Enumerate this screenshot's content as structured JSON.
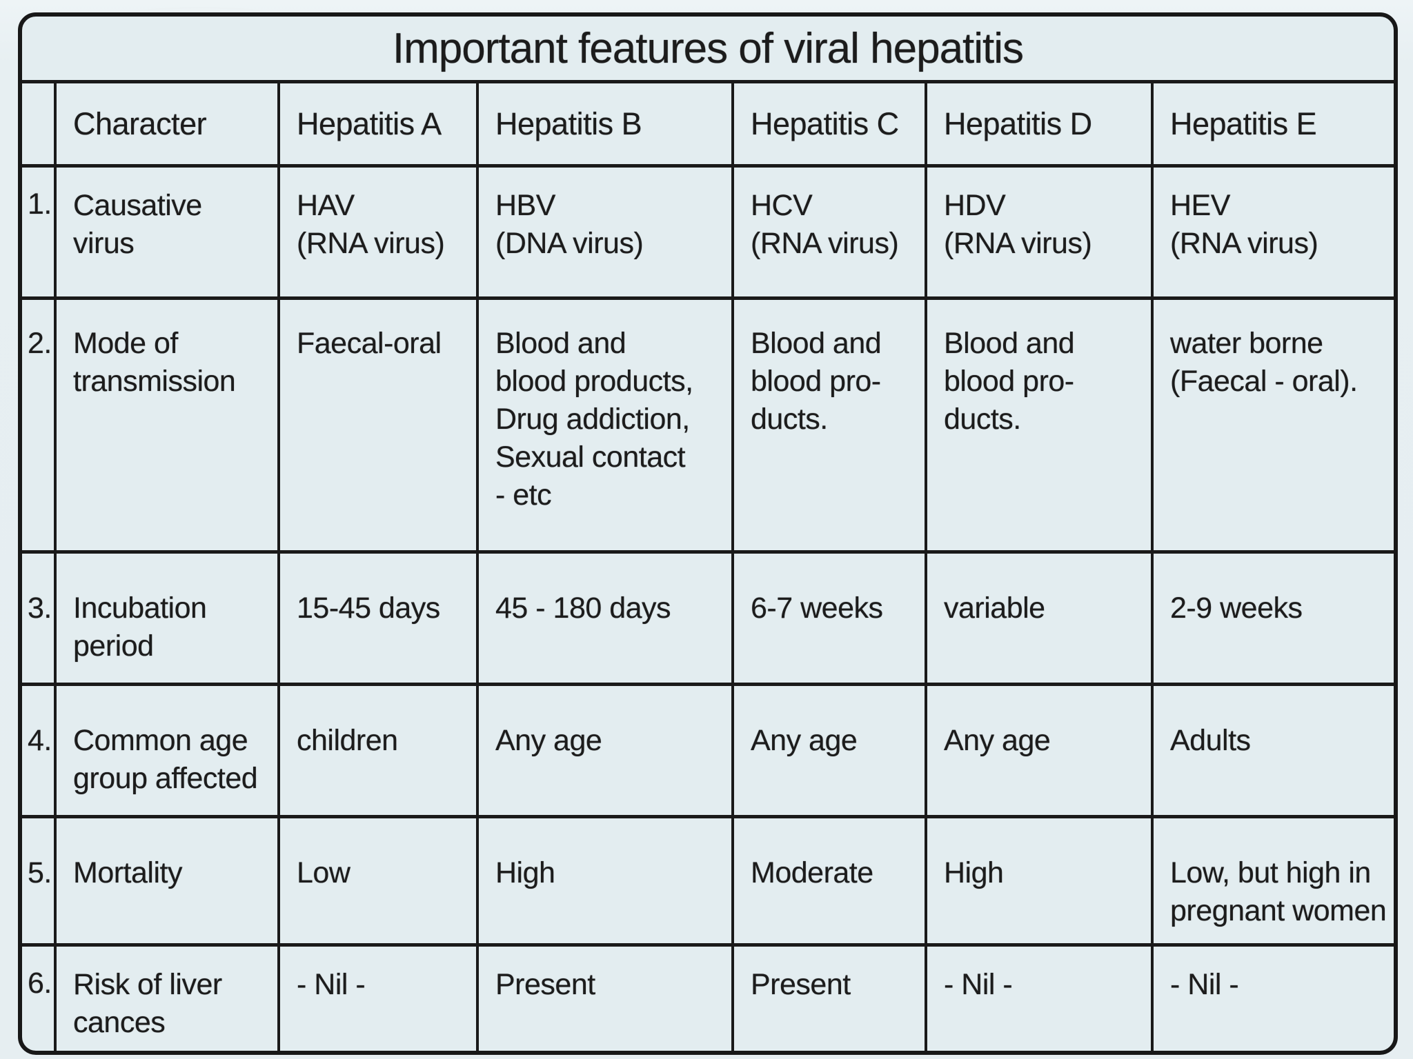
{
  "page": {
    "background": "#e6eef1",
    "ink": "#1c1c1c"
  },
  "table": {
    "title": "Important features of viral hepatitis",
    "headers": {
      "index": "",
      "character": "Character",
      "cols": [
        "Hepatitis A",
        "Hepatitis B",
        "Hepatitis C",
        "Hepatitis D",
        "Hepatitis E"
      ]
    },
    "rows": [
      {
        "num": "1.",
        "character": "Causative\nvirus",
        "cells": [
          "HAV\n(RNA virus)",
          "HBV\n(DNA virus)",
          "HCV\n(RNA virus)",
          "HDV\n(RNA virus)",
          "HEV\n(RNA virus)"
        ]
      },
      {
        "num": "2.",
        "character": "Mode of\ntransmission",
        "cells": [
          "Faecal-oral",
          "Blood and\nblood products,\nDrug addiction,\nSexual contact\n- etc",
          "Blood and\nblood pro-\nducts.",
          "Blood and\nblood pro-\nducts.",
          "water borne\n(Faecal - oral)."
        ]
      },
      {
        "num": "3.",
        "character": "Incubation\nperiod",
        "cells": [
          "15-45 days",
          "45 - 180 days",
          "6-7 weeks",
          "variable",
          "2-9 weeks"
        ]
      },
      {
        "num": "4.",
        "character": "Common age\ngroup affected",
        "cells": [
          "children",
          "Any age",
          "Any age",
          "Any age",
          "Adults"
        ]
      },
      {
        "num": "5.",
        "character": "Mortality",
        "cells": [
          "Low",
          "High",
          "Moderate",
          "High",
          "Low, but high in\npregnant women"
        ]
      },
      {
        "num": "6.",
        "character": "Risk of liver\ncances",
        "cells": [
          "- Nil -",
          "Present",
          "Present",
          "- Nil -",
          "- Nil -"
        ]
      }
    ]
  }
}
